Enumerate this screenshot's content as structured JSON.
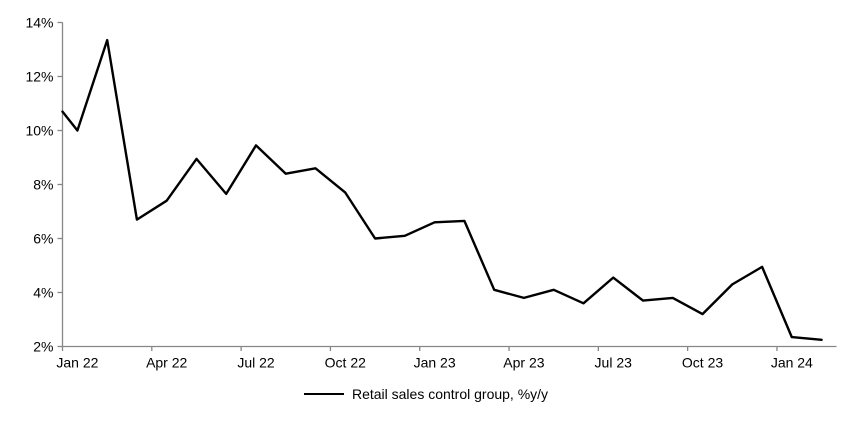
{
  "chart_data": {
    "type": "line",
    "title": "",
    "legend_position": "bottom",
    "axis_color": "#878787",
    "text_color": "#000000",
    "background_color": "#ffffff",
    "ylim": [
      2,
      14
    ],
    "grid": false,
    "y_ticks": [
      {
        "value": 2,
        "label": "2%"
      },
      {
        "value": 4,
        "label": "4%"
      },
      {
        "value": 6,
        "label": "6%"
      },
      {
        "value": 8,
        "label": "8%"
      },
      {
        "value": 10,
        "label": "10%"
      },
      {
        "value": 12,
        "label": "12%"
      },
      {
        "value": 14,
        "label": "14%"
      }
    ],
    "x_tick_labels": [
      "Jan 22",
      "Apr 22",
      "Jul 22",
      "Oct 22",
      "Jan 23",
      "Apr 23",
      "Jul 23",
      "Oct 23",
      "Jan 24"
    ],
    "x_tick_interval_months": 3,
    "line_start_value_at_axis": 10.7,
    "series": [
      {
        "name": "Retail sales control group, %y/y",
        "color": "#000000",
        "x": [
          "Jan 22",
          "Feb 22",
          "Mar 22",
          "Apr 22",
          "May 22",
          "Jun 22",
          "Jul 22",
          "Aug 22",
          "Sep 22",
          "Oct 22",
          "Nov 22",
          "Dec 22",
          "Jan 23",
          "Feb 23",
          "Mar 23",
          "Apr 23",
          "May 23",
          "Jun 23",
          "Jul 23",
          "Aug 23",
          "Sep 23",
          "Oct 23",
          "Nov 23",
          "Dec 23",
          "Jan 24",
          "Feb 24"
        ],
        "values": [
          10.0,
          13.35,
          6.7,
          7.4,
          8.95,
          7.65,
          9.45,
          8.4,
          8.6,
          7.7,
          6.0,
          6.1,
          6.6,
          6.65,
          4.1,
          3.8,
          4.1,
          3.6,
          4.55,
          3.7,
          3.8,
          3.2,
          4.3,
          4.95,
          2.35,
          2.25
        ]
      }
    ]
  }
}
